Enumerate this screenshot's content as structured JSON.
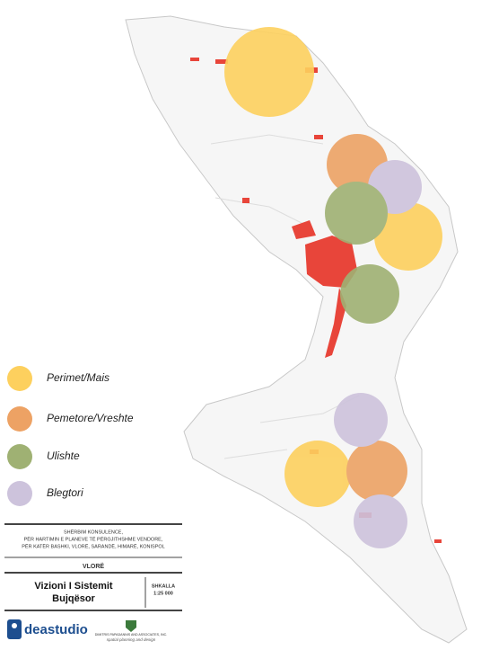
{
  "legend": {
    "items": [
      {
        "label": "Perimet/Mais",
        "color": "#fdd05e"
      },
      {
        "label": "Pemetore/Vreshte",
        "color": "#eda264"
      },
      {
        "label": "Ulishte",
        "color": "#9fb173"
      },
      {
        "label": "Blegtori",
        "color": "#cdc3dc"
      }
    ]
  },
  "title_block": {
    "lines": [
      "SHËRBIM KONSULENCE,",
      "PËR HARTIMIN E PLANEVE TË PËRGJITHSHME VENDORE,",
      "PËR KATËR BASHKI, VLORË, SARANDË, HIMARË, KONISPOL"
    ],
    "place": "VLORË",
    "title_lines": [
      "Vizioni I Sistemit",
      "Bujqësor"
    ],
    "scale_label": "SHKALLA",
    "scale": "1:25 000"
  },
  "logos": {
    "studio": "deastudio",
    "partner": "DIMITRIS PAPADANNIS AND ASSOCIATES, INC.",
    "partner_tagline": "spatial planning and design"
  }
}
